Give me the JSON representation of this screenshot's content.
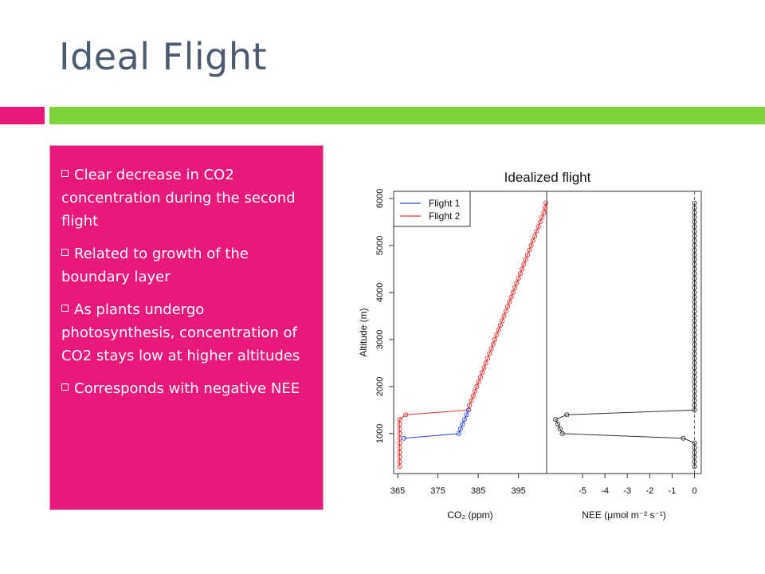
{
  "slide": {
    "title": "Ideal Flight",
    "accent_pink": "#e8197a",
    "accent_green": "#7ed23a",
    "bullets": [
      "Clear decrease in CO2 concentration during the second flight",
      "Related to growth of the boundary layer",
      "As plants undergo photosynthesis, concentration of CO2 stays low at higher altitudes",
      "Corresponds with negative NEE"
    ]
  },
  "chart_data": [
    {
      "type": "scatter",
      "title": "Idealized flight",
      "xlabel": "CO₂ (ppm)",
      "ylabel": "Altitude (m)",
      "xlim": [
        364,
        402
      ],
      "ylim": [
        150,
        6150
      ],
      "xticks": [
        365,
        375,
        385,
        395
      ],
      "yticks": [
        1000,
        2000,
        3000,
        4000,
        5000,
        6000
      ],
      "legend": {
        "position": "top-left",
        "entries": [
          {
            "label": "Flight 1",
            "color": "#3344dd"
          },
          {
            "label": "Flight 2",
            "color": "#e03333"
          }
        ]
      },
      "series": [
        {
          "name": "Flight 1",
          "color": "#3344dd",
          "points": [
            [
              366.5,
              900
            ],
            [
              380.2,
              1000
            ],
            [
              380.6,
              1100
            ],
            [
              381.1,
              1200
            ],
            [
              381.6,
              1300
            ],
            [
              382.1,
              1400
            ],
            [
              382.6,
              1500
            ]
          ]
        },
        {
          "name": "Flight 2",
          "color": "#e03333",
          "points": [
            [
              365.5,
              300
            ],
            [
              365.5,
              400
            ],
            [
              365.5,
              500
            ],
            [
              365.5,
              600
            ],
            [
              365.5,
              700
            ],
            [
              365.5,
              800
            ],
            [
              365.5,
              900
            ],
            [
              365.5,
              1000
            ],
            [
              365.5,
              1100
            ],
            [
              365.5,
              1200
            ],
            [
              365.5,
              1300
            ],
            [
              367,
              1400
            ],
            [
              382.6,
              1500
            ],
            [
              382.85,
              1600
            ],
            [
              383.3,
              1700
            ],
            [
              383.75,
              1800
            ],
            [
              384.2,
              1900
            ],
            [
              384.65,
              2000
            ],
            [
              385.1,
              2100
            ],
            [
              385.55,
              2200
            ],
            [
              386.0,
              2300
            ],
            [
              386.45,
              2400
            ],
            [
              386.9,
              2500
            ],
            [
              387.35,
              2600
            ],
            [
              387.8,
              2700
            ],
            [
              388.25,
              2800
            ],
            [
              388.7,
              2900
            ],
            [
              389.15,
              3000
            ],
            [
              389.6,
              3100
            ],
            [
              390.05,
              3200
            ],
            [
              390.5,
              3300
            ],
            [
              390.95,
              3400
            ],
            [
              391.4,
              3500
            ],
            [
              391.85,
              3600
            ],
            [
              392.3,
              3700
            ],
            [
              392.75,
              3800
            ],
            [
              393.2,
              3900
            ],
            [
              393.65,
              4000
            ],
            [
              394.1,
              4100
            ],
            [
              394.55,
              4200
            ],
            [
              395.0,
              4300
            ],
            [
              395.45,
              4400
            ],
            [
              395.9,
              4500
            ],
            [
              396.35,
              4600
            ],
            [
              396.8,
              4700
            ],
            [
              397.25,
              4800
            ],
            [
              397.7,
              4900
            ],
            [
              398.15,
              5000
            ],
            [
              398.6,
              5100
            ],
            [
              399.05,
              5200
            ],
            [
              399.5,
              5300
            ],
            [
              399.95,
              5400
            ],
            [
              400.4,
              5500
            ],
            [
              400.85,
              5600
            ],
            [
              401.3,
              5700
            ],
            [
              401.6,
              5800
            ],
            [
              401.8,
              5900
            ]
          ]
        }
      ]
    },
    {
      "type": "line",
      "title": "",
      "xlabel": "NEE (μmol m⁻² s⁻¹)",
      "ylabel": "",
      "xlim": [
        -6.6,
        0.3
      ],
      "ylim": [
        150,
        6150
      ],
      "xticks": [
        -5,
        -4,
        -3,
        -2,
        -1,
        0
      ],
      "reference_line": {
        "x": 0,
        "style": "dashed"
      },
      "series": [
        {
          "name": "",
          "color": "#333333",
          "points": [
            [
              0,
              300
            ],
            [
              0,
              400
            ],
            [
              0,
              500
            ],
            [
              0,
              600
            ],
            [
              0,
              700
            ],
            [
              0,
              800
            ],
            [
              -0.5,
              900
            ],
            [
              -5.9,
              1000
            ],
            [
              -6.0,
              1100
            ],
            [
              -6.1,
              1200
            ],
            [
              -6.2,
              1300
            ],
            [
              -5.7,
              1400
            ],
            [
              0,
              1500
            ],
            [
              0,
              1600
            ],
            [
              0,
              1700
            ],
            [
              0,
              1800
            ],
            [
              0,
              1900
            ],
            [
              0,
              2000
            ],
            [
              0,
              2100
            ],
            [
              0,
              2200
            ],
            [
              0,
              2300
            ],
            [
              0,
              2400
            ],
            [
              0,
              2500
            ],
            [
              0,
              2600
            ],
            [
              0,
              2700
            ],
            [
              0,
              2800
            ],
            [
              0,
              2900
            ],
            [
              0,
              3000
            ],
            [
              0,
              3100
            ],
            [
              0,
              3200
            ],
            [
              0,
              3300
            ],
            [
              0,
              3400
            ],
            [
              0,
              3500
            ],
            [
              0,
              3600
            ],
            [
              0,
              3700
            ],
            [
              0,
              3800
            ],
            [
              0,
              3900
            ],
            [
              0,
              4000
            ],
            [
              0,
              4100
            ],
            [
              0,
              4200
            ],
            [
              0,
              4300
            ],
            [
              0,
              4400
            ],
            [
              0,
              4500
            ],
            [
              0,
              4600
            ],
            [
              0,
              4700
            ],
            [
              0,
              4800
            ],
            [
              0,
              4900
            ],
            [
              0,
              5000
            ],
            [
              0,
              5100
            ],
            [
              0,
              5200
            ],
            [
              0,
              5300
            ],
            [
              0,
              5400
            ],
            [
              0,
              5500
            ],
            [
              0,
              5600
            ],
            [
              0,
              5700
            ],
            [
              0,
              5800
            ],
            [
              0,
              5900
            ]
          ]
        }
      ]
    }
  ]
}
